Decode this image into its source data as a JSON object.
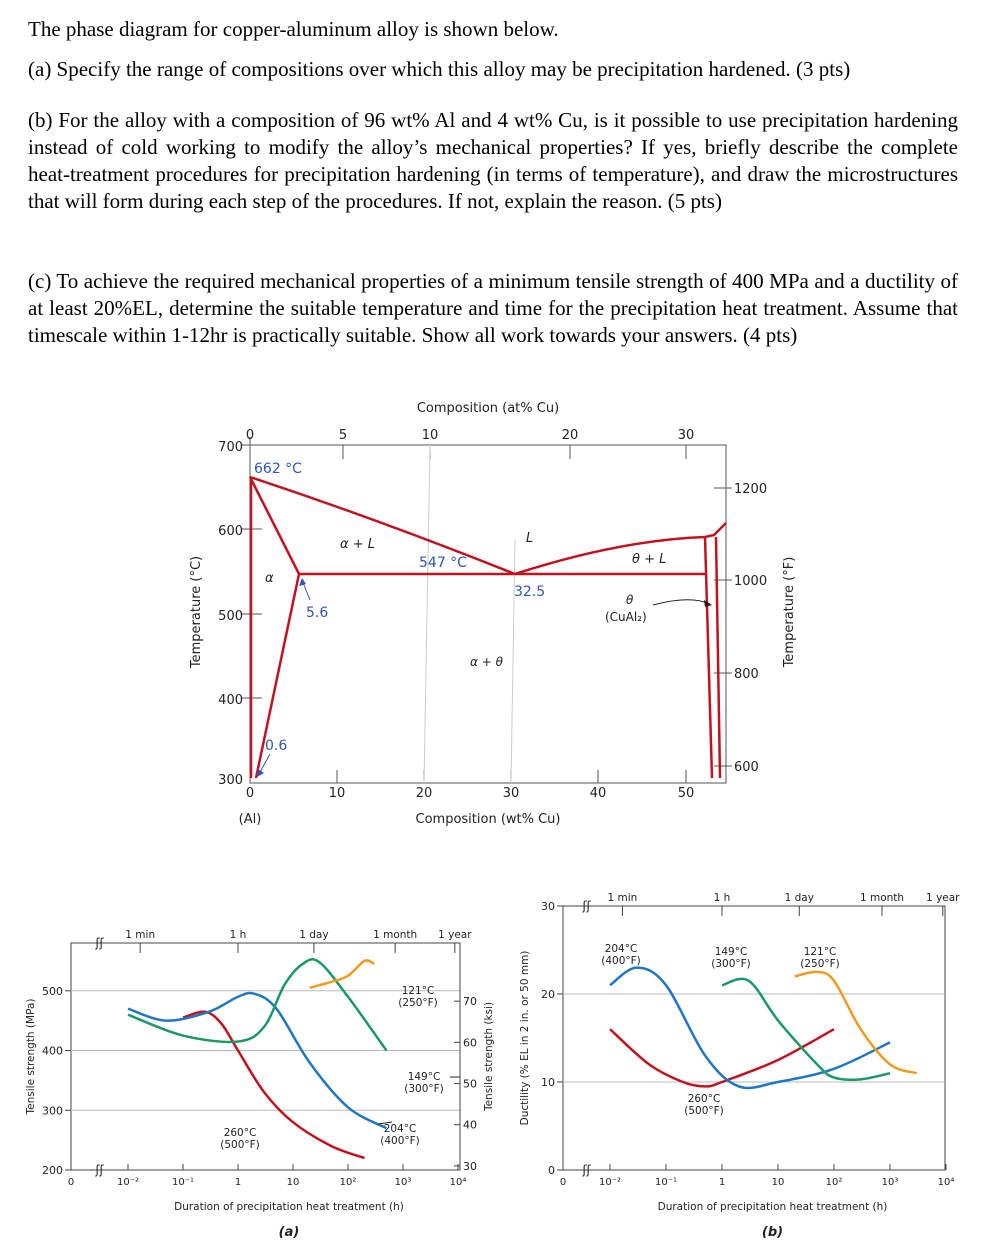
{
  "text": {
    "intro": "The phase diagram for copper-aluminum alloy is shown below.",
    "part_a": "(a) Specify the range of compositions over which this alloy may be precipitation hardened. (3 pts)",
    "part_b": "(b) For the alloy with a composition of 96 wt% Al and 4 wt% Cu, is it possible to use precipitation hardening instead of cold working to modify the alloy’s mechanical properties? If yes, briefly describe the complete heat-treatment procedures for precipitation hardening (in terms of temperature), and draw the microstructures that will form during each step of the procedures. If not, explain the reason. (5 pts)",
    "part_c": "(c) To achieve the required mechanical properties of a minimum tensile strength of 400 MPa and a ductility of at least 20%EL, determine the suitable temperature and time for the precipitation heat treatment. Assume that timescale within 1-12hr is practically suitable. Show all work towards your answers. (4 pts)"
  },
  "phase_diagram": {
    "top_axis_title": "Composition (at% Cu)",
    "top_ticks": [
      "0",
      "5",
      "10",
      "20",
      "30"
    ],
    "bottom_axis_title": "Composition (wt% Cu)",
    "bottom_ticks": [
      "0",
      "10",
      "20",
      "30",
      "40",
      "50"
    ],
    "bottom_sublabel": "(Al)",
    "left_axis_title": "Temperature (°C)",
    "left_ticks": [
      "700",
      "600",
      "500",
      "400",
      "300"
    ],
    "right_axis_title": "Temperature (°F)",
    "right_ticks": [
      "1200",
      "1000",
      "800",
      "600"
    ],
    "labels": {
      "t_melt": "662 °C",
      "t_eutectic": "547 °C",
      "eutectic_comp": "32.5",
      "max_solubility": "5.6",
      "low_solubility": "0.6",
      "alpha_plus_L": "α + L",
      "L": "L",
      "theta_plus_L": "θ + L",
      "alpha": "α",
      "alpha_plus_theta": "α + θ",
      "theta": "θ",
      "theta_formula": "(CuAl₂)"
    },
    "colors": {
      "curve": "#c1121f",
      "annotation": "#2f55b8"
    }
  },
  "chart_data": [
    {
      "type": "line",
      "caption": "(a)",
      "xlabel": "Duration of precipitation heat treatment (h)",
      "ylabel": "Tensile strength (MPa)",
      "ylabel_right": "Tensile strength (ksi)",
      "xscale": "log",
      "xlim": [
        0.01,
        10000
      ],
      "ylim": [
        200,
        580
      ],
      "x_ticks": [
        "0",
        "10⁻²",
        "10⁻¹",
        "1",
        "10",
        "10²",
        "10³",
        "10⁴"
      ],
      "y_ticks": [
        "200",
        "300",
        "400",
        "500"
      ],
      "y_ticks_right": [
        "30",
        "40",
        "50",
        "60",
        "70"
      ],
      "time_marks": [
        "1 min",
        "1 h",
        "1 day",
        "1 month",
        "1 year"
      ],
      "series": [
        {
          "name": "260°C",
          "name2": "(500°F)",
          "color": "#c1121f",
          "x": [
            0.1,
            0.25,
            0.5,
            1,
            3,
            10,
            50,
            200
          ],
          "y": [
            455,
            465,
            445,
            400,
            330,
            280,
            240,
            220
          ]
        },
        {
          "name": "204°C",
          "name2": "(400°F)",
          "color": "#1f77c4",
          "x": [
            0.01,
            0.05,
            0.3,
            1,
            2,
            5,
            20,
            100,
            500
          ],
          "y": [
            470,
            450,
            465,
            490,
            495,
            470,
            380,
            305,
            270
          ]
        },
        {
          "name": "149°C",
          "name2": "(300°F)",
          "color": "#1a9865",
          "x": [
            0.01,
            0.1,
            1,
            3,
            7,
            15,
            30,
            100,
            500
          ],
          "y": [
            460,
            425,
            415,
            440,
            510,
            545,
            548,
            490,
            400
          ]
        },
        {
          "name": "121°C",
          "name2": "(250°F)",
          "color": "#f39a1e",
          "x": [
            20,
            50,
            100,
            200,
            300
          ],
          "y": [
            505,
            515,
            525,
            550,
            545
          ]
        }
      ]
    },
    {
      "type": "line",
      "caption": "(b)",
      "xlabel": "Duration of precipitation heat treatment (h)",
      "ylabel": "Ductility (% EL in 2 in. or 50 mm)",
      "xscale": "log",
      "xlim": [
        0.01,
        10000
      ],
      "ylim": [
        0,
        30
      ],
      "x_ticks": [
        "0",
        "10⁻²",
        "10⁻¹",
        "1",
        "10",
        "10²",
        "10³",
        "10⁴"
      ],
      "y_ticks": [
        "0",
        "10",
        "20",
        "30"
      ],
      "time_marks": [
        "1 min",
        "1 h",
        "1 day",
        "1 month",
        "1 year"
      ],
      "series": [
        {
          "name": "260°C",
          "name2": "(500°F)",
          "color": "#c1121f",
          "x": [
            0.01,
            0.05,
            0.2,
            0.5,
            1,
            10,
            100
          ],
          "y": [
            16,
            12,
            10,
            9.5,
            10,
            12.5,
            16
          ]
        },
        {
          "name": "204°C",
          "name2": "(400°F)",
          "color": "#1f77c4",
          "x": [
            0.01,
            0.03,
            0.1,
            0.5,
            2,
            10,
            100,
            1000
          ],
          "y": [
            21,
            23,
            21,
            13,
            9.5,
            10,
            11.5,
            14.5
          ]
        },
        {
          "name": "149°C",
          "name2": "(300°F)",
          "color": "#1a9865",
          "x": [
            1,
            3,
            10,
            50,
            100,
            300,
            1000
          ],
          "y": [
            21,
            21.5,
            17,
            12,
            10.5,
            10.3,
            11
          ]
        },
        {
          "name": "121°C",
          "name2": "(250°F)",
          "color": "#f39a1e",
          "x": [
            20,
            50,
            100,
            300,
            1000,
            3000
          ],
          "y": [
            22,
            22.5,
            21.5,
            16,
            12,
            11
          ]
        }
      ]
    }
  ]
}
